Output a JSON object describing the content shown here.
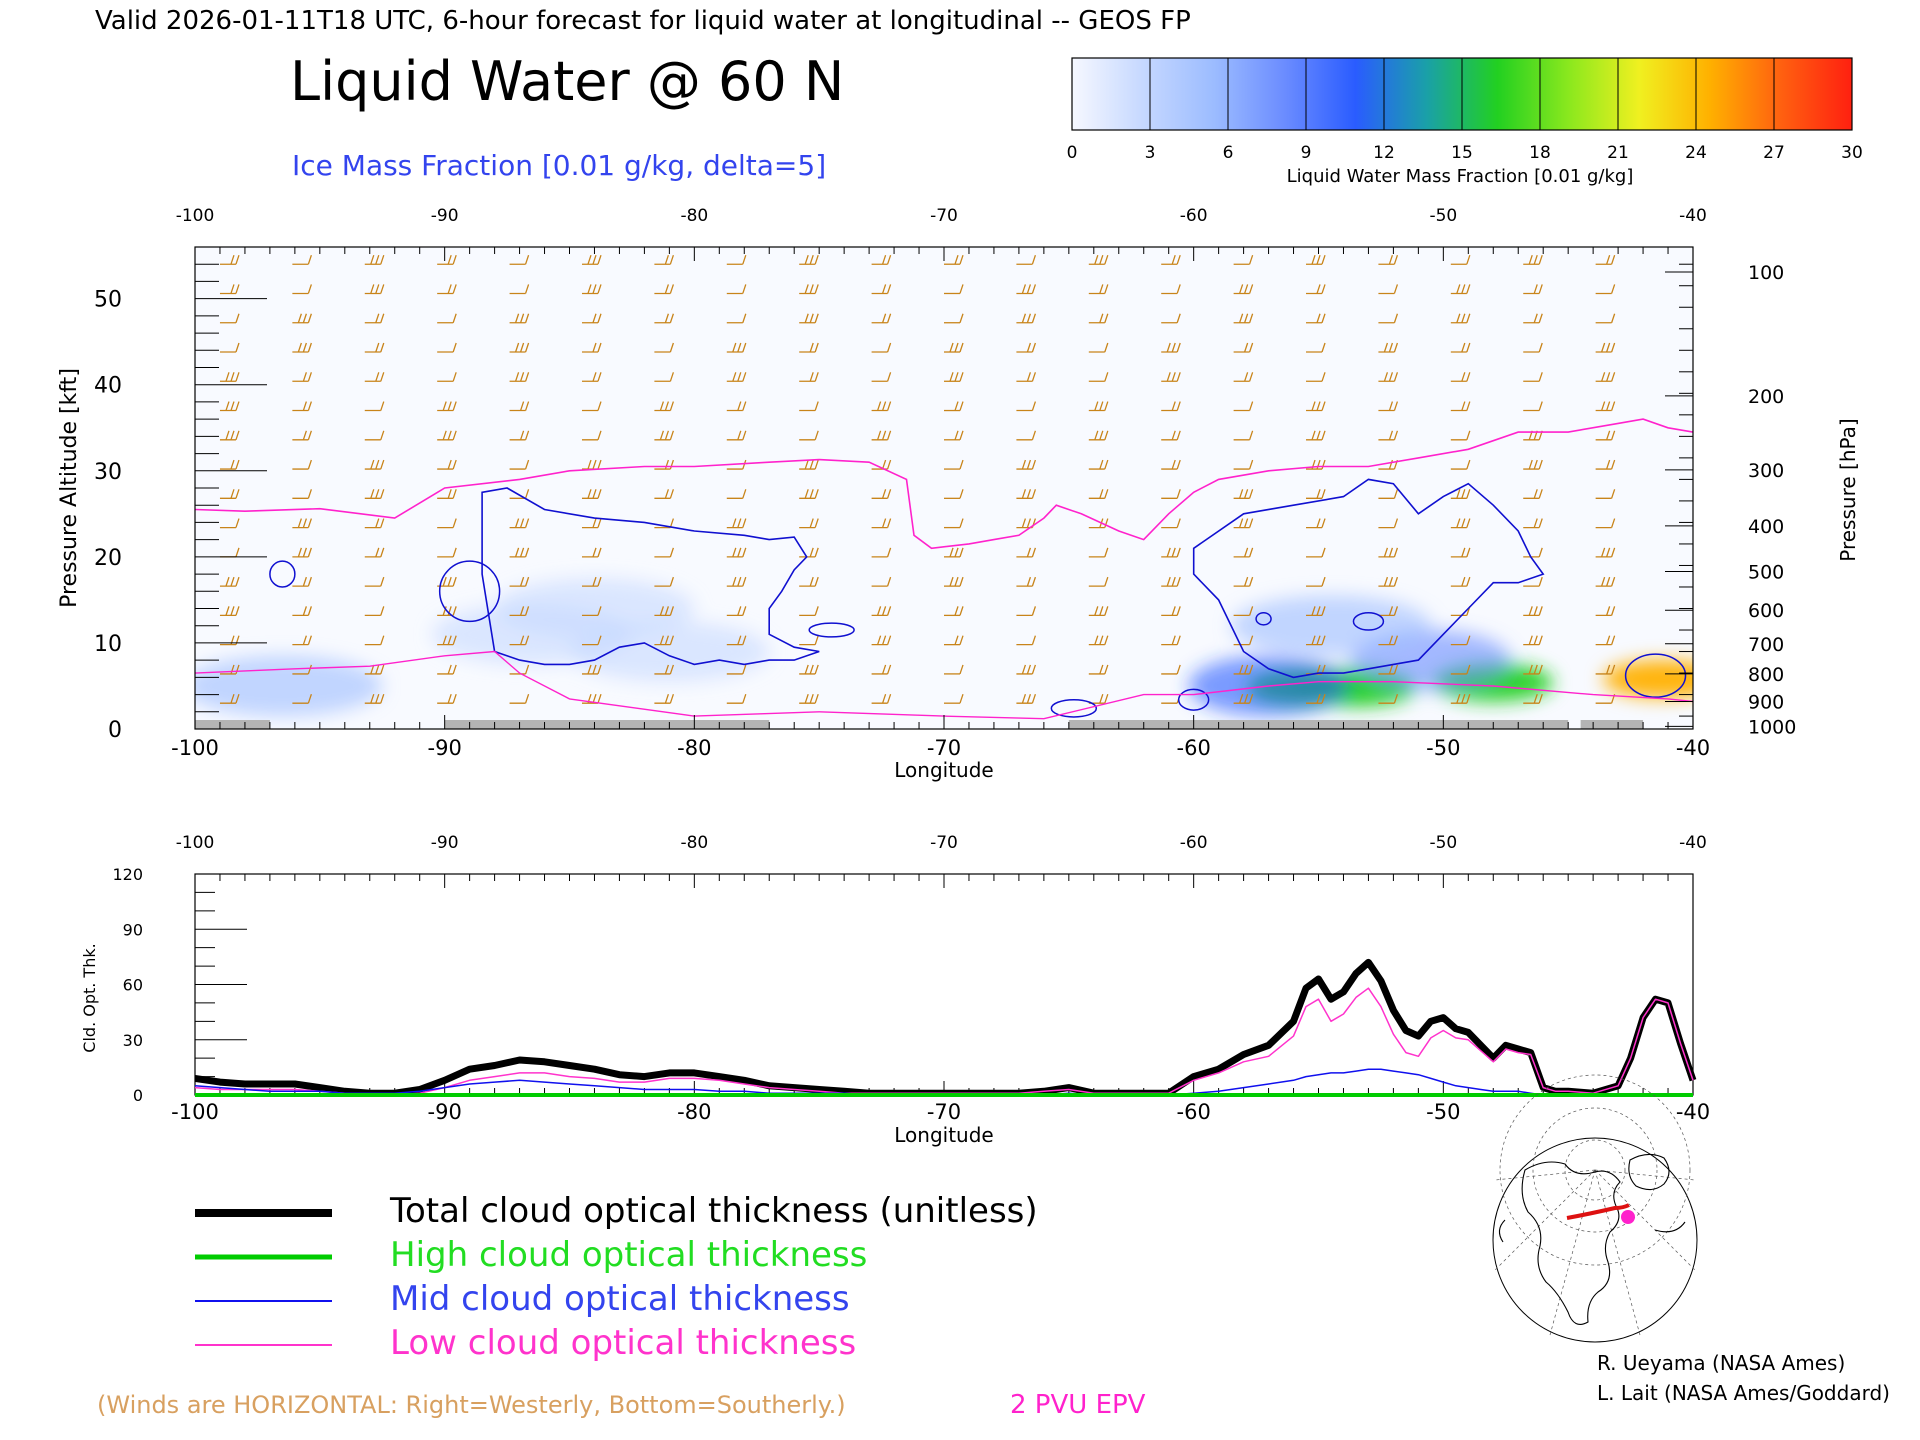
{
  "header": {
    "valid_line": "Valid 2026-01-11T18 UTC, 6-hour forecast for liquid water at longitudinal -- GEOS FP",
    "title": "Liquid Water @ 60 N",
    "subtitle": "Ice Mass Fraction [0.01 g/kg, delta=5]"
  },
  "colorbar": {
    "label": "Liquid Water Mass Fraction [0.01 g/kg]",
    "ticks": [
      "0",
      "3",
      "6",
      "9",
      "12",
      "15",
      "18",
      "21",
      "24",
      "27",
      "30"
    ],
    "colors": [
      "#f6f8ff",
      "#c6d8ff",
      "#9cbcff",
      "#6b8cff",
      "#2a5cff",
      "#1aa0a8",
      "#22d021",
      "#8ae81e",
      "#f0f020",
      "#ffb000",
      "#ff6010",
      "#ff2010"
    ]
  },
  "chart_data": [
    {
      "type": "heatmap",
      "title": "Liquid Water @ 60 N",
      "xlabel": "Longitude",
      "ylabel": "Pressure Altitude [kft]",
      "ylabel_right": "Pressure [hPa]",
      "x_ticks": [
        "-100",
        "-90",
        "-80",
        "-70",
        "-60",
        "-50",
        "-40"
      ],
      "xlim": [
        -100,
        -40
      ],
      "y_ticks": [
        "0",
        "10",
        "20",
        "30",
        "40",
        "50"
      ],
      "ylim": [
        0,
        56
      ],
      "pressure_ticks": [
        {
          "label": "100",
          "kft": 53.1
        },
        {
          "label": "200",
          "kft": 38.7
        },
        {
          "label": "300",
          "kft": 30.1
        },
        {
          "label": "400",
          "kft": 23.6
        },
        {
          "label": "500",
          "kft": 18.3
        },
        {
          "label": "600",
          "kft": 13.8
        },
        {
          "label": "700",
          "kft": 9.9
        },
        {
          "label": "800",
          "kft": 6.4
        },
        {
          "label": "900",
          "kft": 3.2
        },
        {
          "label": "1000",
          "kft": 0.3
        }
      ],
      "liquid_water_blobs": [
        {
          "lon": -53.5,
          "kft": 4.8,
          "value": 17
        },
        {
          "lon": -55.5,
          "kft": 4.8,
          "value": 15
        },
        {
          "lon": -57.0,
          "kft": 5.0,
          "value": 11
        },
        {
          "lon": -48.0,
          "kft": 5.4,
          "value": 16
        },
        {
          "lon": -41.2,
          "kft": 5.8,
          "value": 24
        },
        {
          "lon": -50.5,
          "kft": 8.0,
          "value": 7
        },
        {
          "lon": -54.5,
          "kft": 12.0,
          "value": 5
        },
        {
          "lon": -84.0,
          "kft": 14.0,
          "value": 3
        },
        {
          "lon": -86.5,
          "kft": 11.0,
          "value": 3
        },
        {
          "lon": -96.5,
          "kft": 5.0,
          "value": 5
        },
        {
          "lon": -81.0,
          "kft": 9.0,
          "value": 3
        }
      ],
      "pv2_line": {
        "name": "2 PVU EPV",
        "lon": [
          -100,
          -98,
          -95,
          -92,
          -90,
          -87,
          -85,
          -82,
          -80,
          -77,
          -75,
          -73,
          -71.5,
          -71.2,
          -70.5,
          -69,
          -68,
          -67,
          -66,
          -65.5,
          -64.5,
          -63,
          -62,
          -61,
          -60,
          -59,
          -57,
          -55,
          -53,
          -51,
          -49,
          -47,
          -45,
          -43,
          -42,
          -41,
          -40
        ],
        "kft": [
          25.5,
          25.3,
          25.6,
          24.5,
          28.0,
          29.0,
          30.0,
          30.5,
          30.5,
          31.0,
          31.3,
          31.0,
          29.0,
          22.5,
          21.0,
          21.5,
          22.0,
          22.5,
          24.5,
          26.0,
          25.0,
          23.0,
          22.0,
          25.0,
          27.5,
          29.0,
          30.0,
          30.5,
          30.5,
          31.5,
          32.5,
          34.5,
          34.5,
          35.5,
          36.0,
          35.0,
          34.5
        ]
      },
      "ice_contour_main": {
        "lon": [
          -88.5,
          -87.5,
          -86,
          -84,
          -82,
          -80,
          -78,
          -77,
          -76,
          -75.5,
          -76,
          -76.5,
          -77,
          -77,
          -76,
          -75,
          -76,
          -77,
          -78,
          -79,
          -80,
          -81,
          -82,
          -83,
          -84,
          -85,
          -86,
          -87,
          -88,
          -88.5
        ],
        "kft": [
          27.5,
          28.0,
          25.5,
          24.5,
          24.0,
          23.0,
          22.5,
          22.0,
          22.3,
          20.0,
          18.5,
          16.0,
          14.0,
          11.0,
          9.5,
          9.0,
          8.0,
          8.0,
          7.5,
          8.0,
          7.5,
          8.5,
          10.0,
          9.5,
          8.0,
          7.5,
          7.5,
          8.0,
          9.0,
          18.0
        ]
      },
      "ice_contour_right": {
        "lon": [
          -60,
          -58,
          -56,
          -54,
          -53,
          -52,
          -51,
          -50,
          -49,
          -48,
          -47,
          -46.5,
          -46,
          -47,
          -48,
          -49,
          -50,
          -51,
          -52,
          -53,
          -54,
          -55,
          -56,
          -57,
          -58,
          -59,
          -60
        ],
        "kft": [
          21.0,
          25.0,
          26.0,
          27.0,
          29.0,
          28.5,
          25.0,
          27.0,
          28.5,
          26.0,
          23.0,
          20.0,
          18.0,
          17.0,
          17.0,
          14.0,
          11.0,
          8.0,
          7.5,
          7.0,
          6.5,
          6.5,
          6.0,
          7.0,
          9.0,
          15.0,
          18.0
        ]
      },
      "ice_contour_small": [
        {
          "lon": -96.5,
          "kft": 18.0,
          "rx": 0.5,
          "rkft": 1.5
        },
        {
          "lon": -89.0,
          "kft": 16.0,
          "rx": 1.2,
          "rkft": 3.5
        },
        {
          "lon": -74.5,
          "kft": 11.5,
          "rx": 0.9,
          "rkft": 0.8
        },
        {
          "lon": -64.8,
          "kft": 2.4,
          "rx": 0.9,
          "rkft": 1.0
        },
        {
          "lon": -60.0,
          "kft": 3.4,
          "rx": 0.6,
          "rkft": 1.2
        },
        {
          "lon": -41.5,
          "kft": 6.2,
          "rx": 1.2,
          "rkft": 2.5
        },
        {
          "lon": -53.0,
          "kft": 12.5,
          "rx": 0.6,
          "rkft": 1.0
        },
        {
          "lon": -57.2,
          "kft": 12.8,
          "rx": 0.3,
          "rkft": 0.7
        }
      ],
      "terrain_lon_ranges": [
        [
          -100,
          -97
        ],
        [
          -90,
          -85
        ],
        [
          -85,
          -77
        ],
        [
          -65,
          -62
        ],
        [
          -62,
          -45
        ],
        [
          -44.5,
          -42
        ]
      ]
    },
    {
      "type": "line",
      "xlabel": "Longitude",
      "ylabel": "Cld. Opt. Thk.",
      "x_ticks": [
        "-100",
        "-90",
        "-80",
        "-70",
        "-60",
        "-50",
        "-40"
      ],
      "xlim": [
        -100,
        -40
      ],
      "y_ticks": [
        "0",
        "30",
        "60",
        "90",
        "120"
      ],
      "ylim": [
        0,
        120
      ],
      "x": [
        -100,
        -99,
        -98,
        -97,
        -96,
        -95,
        -94,
        -93,
        -92,
        -91,
        -90,
        -89,
        -88,
        -87,
        -86,
        -85,
        -84,
        -83,
        -82,
        -81,
        -80,
        -79,
        -78,
        -77,
        -76,
        -75,
        -74,
        -73,
        -72,
        -71,
        -70,
        -69,
        -68,
        -67,
        -66,
        -65,
        -64,
        -63,
        -62,
        -61,
        -60,
        -59,
        -58,
        -57,
        -56,
        -55.5,
        -55,
        -54.5,
        -54,
        -53.5,
        -53,
        -52.5,
        -52,
        -51.5,
        -51,
        -50.5,
        -50,
        -49.5,
        -49,
        -48.5,
        -48,
        -47.5,
        -47,
        -46.5,
        -46,
        -45.5,
        -45,
        -44,
        -43,
        -42.5,
        -42,
        -41.5,
        -41,
        -40.5,
        -40
      ],
      "series": [
        {
          "name": "Total cloud optical thickness (unitless)",
          "color": "#000000",
          "values": [
            9,
            7,
            6,
            6,
            6,
            4,
            2,
            1,
            1,
            3,
            8,
            14,
            16,
            19,
            18,
            16,
            14,
            11,
            10,
            12,
            12,
            10,
            8,
            5,
            4,
            3,
            2,
            1,
            1,
            1,
            1,
            1,
            1,
            1,
            2,
            4,
            1,
            1,
            1,
            1,
            10,
            14,
            22,
            27,
            40,
            58,
            63,
            52,
            56,
            66,
            72,
            62,
            46,
            35,
            32,
            40,
            42,
            36,
            34,
            27,
            20,
            27,
            25,
            23,
            4,
            2,
            2,
            1,
            5,
            20,
            42,
            52,
            50,
            28,
            8
          ]
        },
        {
          "name": "High cloud optical thickness",
          "color": "#00cc00",
          "values": [
            0,
            0,
            0,
            0,
            0,
            0,
            0,
            0,
            0,
            0,
            0,
            0,
            0,
            0,
            0,
            0,
            0,
            0,
            0,
            0,
            0,
            0,
            0,
            0,
            0,
            0,
            0,
            0,
            0,
            0,
            0,
            0,
            0,
            0,
            0,
            0,
            0,
            0,
            0,
            0,
            0,
            0,
            0,
            0,
            0,
            0,
            0,
            0,
            0,
            0,
            0,
            0,
            0,
            0,
            0,
            0,
            0,
            0,
            0,
            0,
            0,
            0,
            0,
            0,
            0,
            0,
            0,
            0,
            0,
            0,
            0,
            0,
            0,
            0,
            0
          ]
        },
        {
          "name": "Mid cloud optical thickness",
          "color": "#1010ee",
          "values": [
            5,
            4,
            3,
            2,
            2,
            2,
            1,
            1,
            1,
            2,
            4,
            6,
            7,
            8,
            7,
            6,
            5,
            4,
            3,
            3,
            3,
            2,
            2,
            1,
            1,
            1,
            1,
            0,
            0,
            0,
            0,
            0,
            0,
            0,
            0,
            1,
            0,
            0,
            0,
            0,
            1,
            2,
            4,
            6,
            8,
            10,
            11,
            12,
            12,
            13,
            14,
            14,
            13,
            12,
            11,
            9,
            7,
            5,
            4,
            3,
            2,
            2,
            2,
            1,
            0,
            0,
            0,
            0,
            0,
            0,
            0,
            0,
            0,
            0,
            0
          ]
        },
        {
          "name": "Low cloud optical thickness",
          "color": "#ff33cc",
          "values": [
            4,
            3,
            3,
            3,
            3,
            2,
            1,
            0,
            0,
            1,
            4,
            8,
            10,
            12,
            12,
            10,
            9,
            7,
            7,
            9,
            9,
            8,
            6,
            4,
            3,
            2,
            1,
            1,
            1,
            1,
            1,
            1,
            1,
            1,
            2,
            3,
            1,
            1,
            1,
            1,
            8,
            12,
            18,
            21,
            32,
            48,
            52,
            40,
            44,
            53,
            58,
            48,
            33,
            23,
            21,
            31,
            35,
            31,
            30,
            24,
            18,
            25,
            23,
            22,
            4,
            2,
            2,
            1,
            5,
            20,
            42,
            52,
            50,
            28,
            8
          ]
        }
      ]
    }
  ],
  "legend": [
    {
      "label": "Total cloud optical thickness (unitless)",
      "color": "#000000",
      "text_color": "#000000"
    },
    {
      "label": "High cloud optical thickness",
      "color": "#00cc00",
      "text_color": "#22dd22"
    },
    {
      "label": "Mid cloud optical thickness",
      "color": "#1010ee",
      "text_color": "#3344ee"
    },
    {
      "label": "Low cloud optical thickness",
      "color": "#ff33cc",
      "text_color": "#ff33cc"
    }
  ],
  "footer": {
    "winds_note": "(Winds are HORIZONTAL: Right=Westerly, Bottom=Southerly.)",
    "epv_label": "2 PVU EPV",
    "credit_1": "R. Ueyama (NASA Ames)",
    "credit_2": "L. Lait (NASA Ames/Goddard)"
  },
  "colors": {
    "wind": "#c8841a",
    "ice_contour": "#1010d0",
    "epv": "#ff22cc",
    "terrain": "#b4b4b4"
  }
}
